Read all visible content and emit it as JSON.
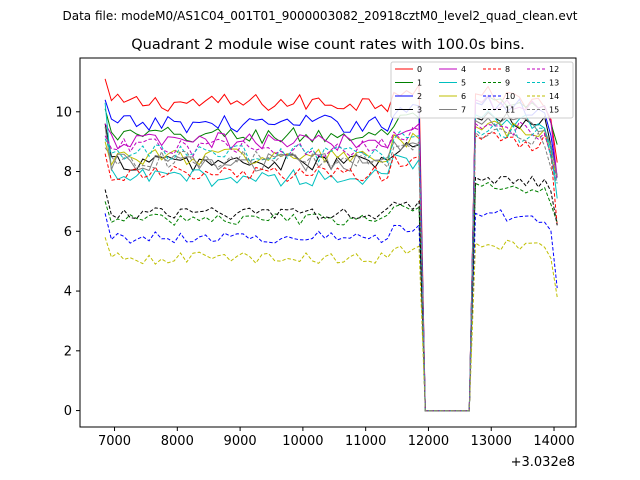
{
  "figure": {
    "suptitle": "Data file: modeM0/AS1C04_001T01_9000003082_20918cztM0_level2_quad_clean.evt"
  },
  "chart_data": {
    "type": "line",
    "title": "Quadrant 2 module wise count rates with 100.0s bins.",
    "xlabel": "",
    "ylabel": "",
    "x_offset_label": "+3.032e8",
    "xlim": [
      6450,
      14350
    ],
    "ylim": [
      -0.55,
      11.8
    ],
    "xticks": [
      7000,
      8000,
      9000,
      10000,
      11000,
      12000,
      13000,
      14000
    ],
    "xtick_labels": [
      "7000",
      "8000",
      "9000",
      "10000",
      "11000",
      "12000",
      "13000",
      "14000"
    ],
    "yticks": [
      0,
      2,
      4,
      6,
      8,
      10
    ],
    "ytick_labels": [
      "0",
      "2",
      "4",
      "6",
      "8",
      "10"
    ],
    "grid": false,
    "legend": {
      "placement": "top-right",
      "columns": 4
    },
    "x_start": 6850,
    "x_step": 100,
    "n_points": 73,
    "gap": {
      "from": 11950,
      "to": 12650,
      "value": 0
    },
    "series": [
      {
        "name": "0",
        "color": "#ff0000",
        "dash": false,
        "level": 10.3,
        "amp": 0.3,
        "first": 11.1,
        "peak": 10.6,
        "end": 8.3
      },
      {
        "name": "1",
        "color": "#008000",
        "dash": false,
        "level": 9.2,
        "amp": 0.3,
        "first": 10.1,
        "peak": 10.3,
        "end": 8.9
      },
      {
        "name": "2",
        "color": "#0000ff",
        "dash": false,
        "level": 9.6,
        "amp": 0.3,
        "first": 10.4,
        "peak": 10.3,
        "end": 7.8
      },
      {
        "name": "3",
        "color": "#000000",
        "dash": false,
        "level": 8.3,
        "amp": 0.3,
        "first": 9.6,
        "peak": 9.8,
        "end": 7.8
      },
      {
        "name": "4",
        "color": "#bf00bf",
        "dash": false,
        "level": 9.0,
        "amp": 0.3,
        "first": 9.6,
        "peak": 10.4,
        "end": 7.8
      },
      {
        "name": "5",
        "color": "#00bfbf",
        "dash": false,
        "level": 7.8,
        "amp": 0.3,
        "first": 10.3,
        "peak": 9.9,
        "end": 7.1
      },
      {
        "name": "6",
        "color": "#bfbf00",
        "dash": false,
        "level": 8.5,
        "amp": 0.3,
        "first": 9.0,
        "peak": 9.5,
        "end": 7.8
      },
      {
        "name": "7",
        "color": "#808080",
        "dash": false,
        "level": 8.3,
        "amp": 0.3,
        "first": 9.5,
        "peak": 9.7,
        "end": 7.8
      },
      {
        "name": "8",
        "color": "#ff0000",
        "dash": true,
        "level": 7.9,
        "amp": 0.3,
        "first": 8.6,
        "peak": 9.2,
        "end": 6.2
      },
      {
        "name": "9",
        "color": "#008000",
        "dash": true,
        "level": 6.4,
        "amp": 0.2,
        "first": 7.0,
        "peak": 7.6,
        "end": 6.3
      },
      {
        "name": "10",
        "color": "#0000ff",
        "dash": true,
        "level": 5.8,
        "amp": 0.2,
        "first": 6.6,
        "peak": 6.6,
        "end": 4.1
      },
      {
        "name": "11",
        "color": "#000000",
        "dash": true,
        "level": 6.6,
        "amp": 0.2,
        "first": 7.4,
        "peak": 7.8,
        "end": 6.2
      },
      {
        "name": "12",
        "color": "#bf00bf",
        "dash": true,
        "level": 8.8,
        "amp": 0.3,
        "first": 9.2,
        "peak": 9.6,
        "end": 7.7
      },
      {
        "name": "13",
        "color": "#00bfbf",
        "dash": true,
        "level": 8.6,
        "amp": 0.3,
        "first": 9.1,
        "peak": 9.4,
        "end": 7.6
      },
      {
        "name": "14",
        "color": "#bfbf00",
        "dash": true,
        "level": 5.1,
        "amp": 0.2,
        "first": 5.8,
        "peak": 5.6,
        "end": 3.8
      },
      {
        "name": "15",
        "color": "#808080",
        "dash": true,
        "level": 8.4,
        "amp": 0.3,
        "first": 8.8,
        "peak": 9.3,
        "end": 7.6
      }
    ]
  }
}
